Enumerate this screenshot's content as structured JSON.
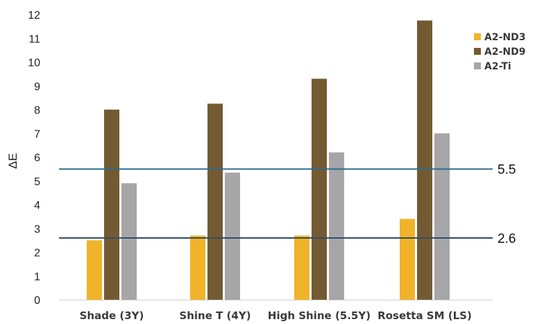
{
  "chart_data": {
    "type": "bar",
    "ylabel": "ΔE",
    "ylim": [
      0,
      12
    ],
    "yticks": [
      0,
      1,
      2,
      3,
      4,
      5,
      6,
      7,
      8,
      9,
      10,
      11,
      12
    ],
    "grid": false,
    "legend_position": "top-right",
    "categories": [
      "Shade (3Y)",
      "Shine T (4Y)",
      "High Shine (5.5Y)",
      "Rosetta SM (LS)"
    ],
    "series": [
      {
        "name": "A2-ND3",
        "color": "#f0b32a",
        "values": [
          2.5,
          2.7,
          2.7,
          3.4
        ]
      },
      {
        "name": "A2-ND9",
        "color": "#735a32",
        "values": [
          8.0,
          8.25,
          9.3,
          11.75
        ]
      },
      {
        "name": "A2-Ti",
        "color": "#a6a6a8",
        "values": [
          4.9,
          5.35,
          6.2,
          7.0
        ]
      }
    ],
    "reference_lines": [
      {
        "value": 5.5,
        "label": "5.5",
        "color": "#2e6a90"
      },
      {
        "value": 2.6,
        "label": "2.6",
        "color": "#2f4f66"
      }
    ]
  }
}
